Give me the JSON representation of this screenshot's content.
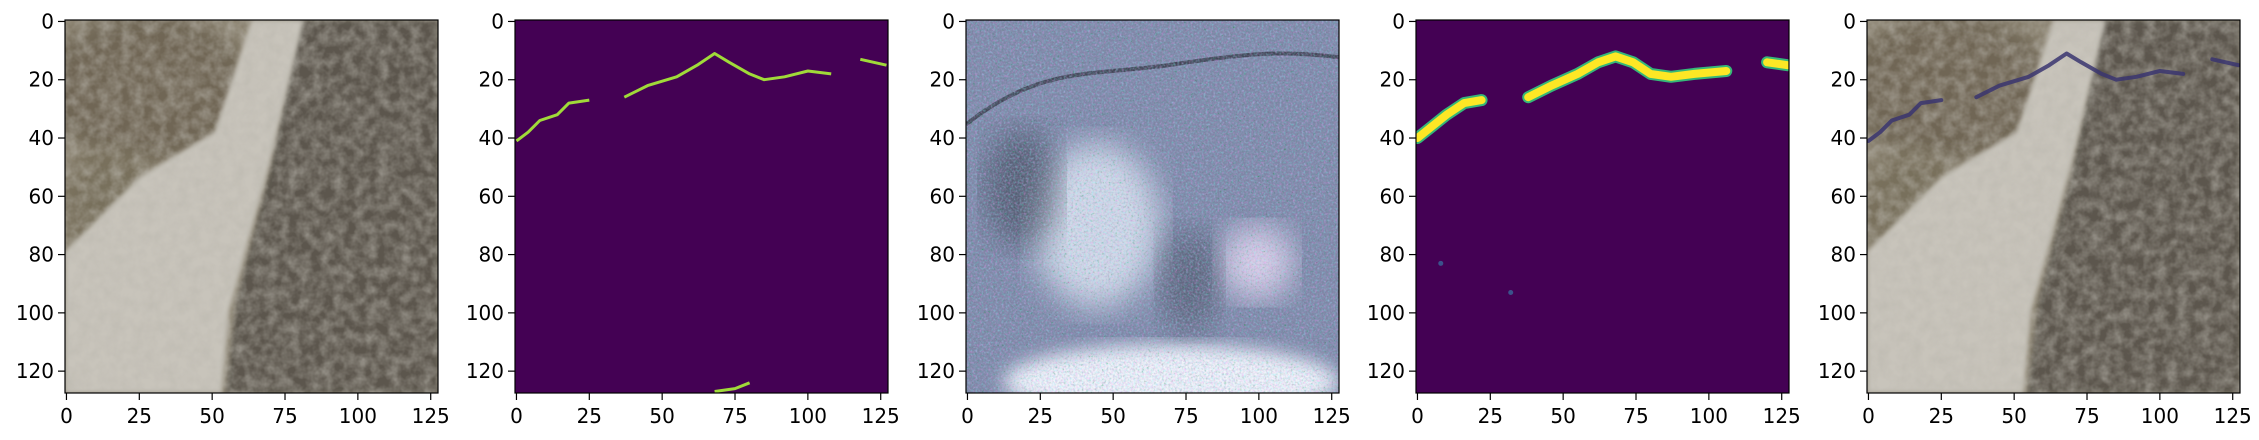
{
  "chart_data": [
    {
      "type": "heatmap",
      "title": "",
      "content": "rgb-image",
      "description_visible": "rock surface photo with a diagonal light band",
      "xlim": [
        0,
        127
      ],
      "ylim": [
        127,
        0
      ],
      "x_ticks": [
        "0",
        "25",
        "50",
        "75",
        "100",
        "125"
      ],
      "y_ticks": [
        "0",
        "20",
        "40",
        "60",
        "80",
        "100",
        "120"
      ],
      "x_tick_values": [
        0,
        25,
        50,
        75,
        100,
        125
      ],
      "y_tick_values": [
        0,
        20,
        40,
        60,
        80,
        100,
        120
      ],
      "colors": {
        "dark": "#5b564d",
        "light": "#c8c4bb",
        "mid": "#8c8472"
      }
    },
    {
      "type": "heatmap",
      "title": "",
      "content": "binary-mask",
      "colormap": "viridis",
      "xlim": [
        0,
        127
      ],
      "ylim": [
        127,
        0
      ],
      "x_ticks": [
        "0",
        "25",
        "50",
        "75",
        "100",
        "125"
      ],
      "y_ticks": [
        "0",
        "20",
        "40",
        "60",
        "80",
        "100",
        "120"
      ],
      "x_tick_values": [
        0,
        25,
        50,
        75,
        100,
        125
      ],
      "y_tick_values": [
        0,
        20,
        40,
        60,
        80,
        100,
        120
      ],
      "background": "#440154",
      "foreground": "#a0da39",
      "crack_paths": [
        [
          [
            0,
            41
          ],
          [
            4,
            38
          ],
          [
            8,
            34
          ],
          [
            14,
            32
          ],
          [
            18,
            28
          ],
          [
            25,
            27
          ]
        ],
        [
          [
            37,
            26
          ],
          [
            45,
            22
          ],
          [
            55,
            19
          ],
          [
            62,
            15
          ],
          [
            68,
            11
          ],
          [
            73,
            14
          ],
          [
            80,
            18
          ],
          [
            85,
            20
          ],
          [
            92,
            19
          ],
          [
            100,
            17
          ],
          [
            108,
            18
          ]
        ],
        [
          [
            118,
            13
          ],
          [
            127,
            15
          ]
        ],
        [
          [
            68,
            127
          ],
          [
            75,
            126
          ],
          [
            80,
            124
          ]
        ]
      ]
    },
    {
      "type": "heatmap",
      "title": "",
      "content": "rgb-image",
      "description_visible": "noisy generated texture with magenta/cyan speckles",
      "xlim": [
        0,
        127
      ],
      "ylim": [
        127,
        0
      ],
      "x_ticks": [
        "0",
        "25",
        "50",
        "75",
        "100",
        "125"
      ],
      "y_ticks": [
        "0",
        "20",
        "40",
        "60",
        "80",
        "100",
        "120"
      ],
      "x_tick_values": [
        0,
        25,
        50,
        75,
        100,
        125
      ],
      "y_tick_values": [
        0,
        20,
        40,
        60,
        80,
        100,
        120
      ],
      "colors": {
        "base": "#7f86a6",
        "light": "#dfe4f0",
        "dark": "#3b3f4f",
        "magenta": "#e040e0",
        "cyan": "#30e0e0"
      }
    },
    {
      "type": "heatmap",
      "title": "",
      "content": "probability-map",
      "colormap": "viridis",
      "xlim": [
        0,
        127
      ],
      "ylim": [
        127,
        0
      ],
      "x_ticks": [
        "0",
        "25",
        "50",
        "75",
        "100",
        "125"
      ],
      "y_ticks": [
        "0",
        "20",
        "40",
        "60",
        "80",
        "100",
        "120"
      ],
      "x_tick_values": [
        0,
        25,
        50,
        75,
        100,
        125
      ],
      "y_tick_values": [
        0,
        20,
        40,
        60,
        80,
        100,
        120
      ],
      "background": "#440154",
      "foreground": "#fde725",
      "crack_paths": [
        [
          [
            0,
            40
          ],
          [
            5,
            36
          ],
          [
            10,
            32
          ],
          [
            16,
            28
          ],
          [
            22,
            27
          ]
        ],
        [
          [
            38,
            26
          ],
          [
            46,
            22
          ],
          [
            55,
            18
          ],
          [
            62,
            14
          ],
          [
            68,
            12
          ],
          [
            74,
            14
          ],
          [
            80,
            18
          ],
          [
            87,
            19
          ],
          [
            95,
            18
          ],
          [
            106,
            17
          ]
        ],
        [
          [
            120,
            14
          ],
          [
            127,
            15
          ]
        ]
      ],
      "spots": [
        [
          8,
          83
        ],
        [
          32,
          93
        ]
      ]
    },
    {
      "type": "heatmap",
      "title": "",
      "content": "rgb-image-overlay",
      "xlim": [
        0,
        127
      ],
      "ylim": [
        127,
        0
      ],
      "x_ticks": [
        "0",
        "25",
        "50",
        "75",
        "100",
        "125"
      ],
      "y_ticks": [
        "0",
        "20",
        "40",
        "60",
        "80",
        "100",
        "120"
      ],
      "x_tick_values": [
        0,
        25,
        50,
        75,
        100,
        125
      ],
      "y_tick_values": [
        0,
        20,
        40,
        60,
        80,
        100,
        120
      ],
      "overlay_color": "#3a3570",
      "crack_paths": [
        [
          [
            0,
            41
          ],
          [
            4,
            38
          ],
          [
            8,
            34
          ],
          [
            14,
            32
          ],
          [
            18,
            28
          ],
          [
            25,
            27
          ]
        ],
        [
          [
            37,
            26
          ],
          [
            45,
            22
          ],
          [
            55,
            19
          ],
          [
            62,
            15
          ],
          [
            68,
            11
          ],
          [
            73,
            14
          ],
          [
            80,
            18
          ],
          [
            85,
            20
          ],
          [
            92,
            19
          ],
          [
            100,
            17
          ],
          [
            108,
            18
          ]
        ],
        [
          [
            118,
            13
          ],
          [
            127,
            15
          ]
        ]
      ]
    }
  ]
}
